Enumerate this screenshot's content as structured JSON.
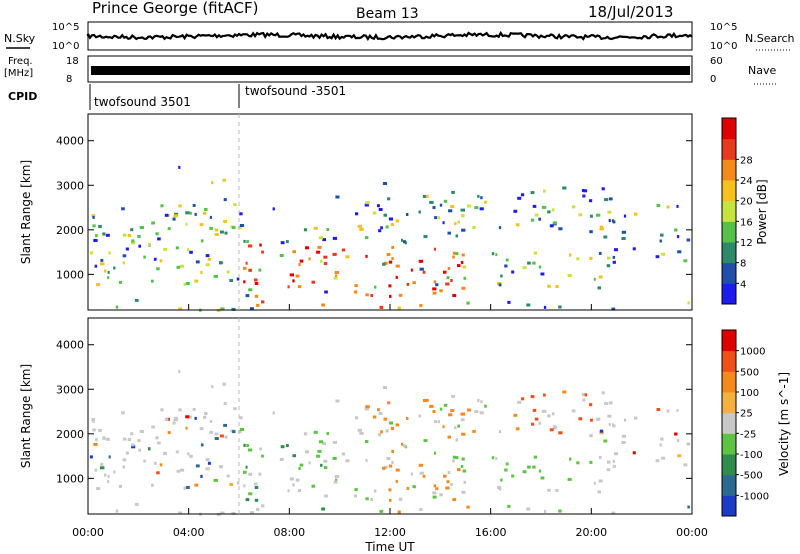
{
  "header": {
    "station": "Prince George (fitACF)",
    "beam": "Beam 13",
    "date": "18/Jul/2013"
  },
  "top_panels": {
    "nsky": {
      "label": "N.Sky",
      "ticks": [
        "10^5",
        "10^0"
      ],
      "right_ticks": [
        "10^5",
        "10^0"
      ],
      "right_label": "N.Search"
    },
    "freq": {
      "label_line1": "Freq.",
      "label_line2": "[MHz]",
      "ticks": [
        "18",
        "8"
      ],
      "right_ticks": [
        "60",
        "0"
      ],
      "right_label": "Nave"
    },
    "cpid": {
      "label": "CPID",
      "segments": [
        "twofsound 3501",
        "twofsound -3501"
      ]
    }
  },
  "chart_data": [
    {
      "type": "heatmap",
      "name": "power",
      "ylabel": "Slant Range [km]",
      "yticks": [
        "1000",
        "2000",
        "3000",
        "4000"
      ],
      "ylim": [
        200,
        4600
      ],
      "colorbar_label": "Power [dB]",
      "colorbar_ticks": [
        "4",
        "8",
        "12",
        "16",
        "20",
        "24",
        "28"
      ],
      "colors": [
        "#1c1cf0",
        "#1f4fa8",
        "#2b8a6a",
        "#55c14a",
        "#c7e340",
        "#f5c21c",
        "#f58a1c",
        "#e83a1c",
        "#e00000"
      ]
    },
    {
      "type": "heatmap",
      "name": "velocity",
      "ylabel": "Slant Range [km]",
      "yticks": [
        "1000",
        "2000",
        "3000",
        "4000"
      ],
      "ylim": [
        200,
        4600
      ],
      "colorbar_label": "Velocity [m s^-1]",
      "colorbar_ticks": [
        "1000",
        "500",
        "100",
        "25",
        "-25",
        "-100",
        "-500",
        "-1000"
      ],
      "colors": [
        "#1c3cc8",
        "#2a6a90",
        "#2f8c4a",
        "#5cc440",
        "#c8c8c8",
        "#f5b040",
        "#f58a1c",
        "#f05018",
        "#e00000"
      ]
    }
  ],
  "x_axis": {
    "label": "Time UT",
    "ticks": [
      "00:00",
      "04:00",
      "08:00",
      "12:00",
      "16:00",
      "20:00",
      "00:00"
    ],
    "range_hours": [
      0,
      24
    ]
  },
  "cpid_change_hour": 6.0
}
